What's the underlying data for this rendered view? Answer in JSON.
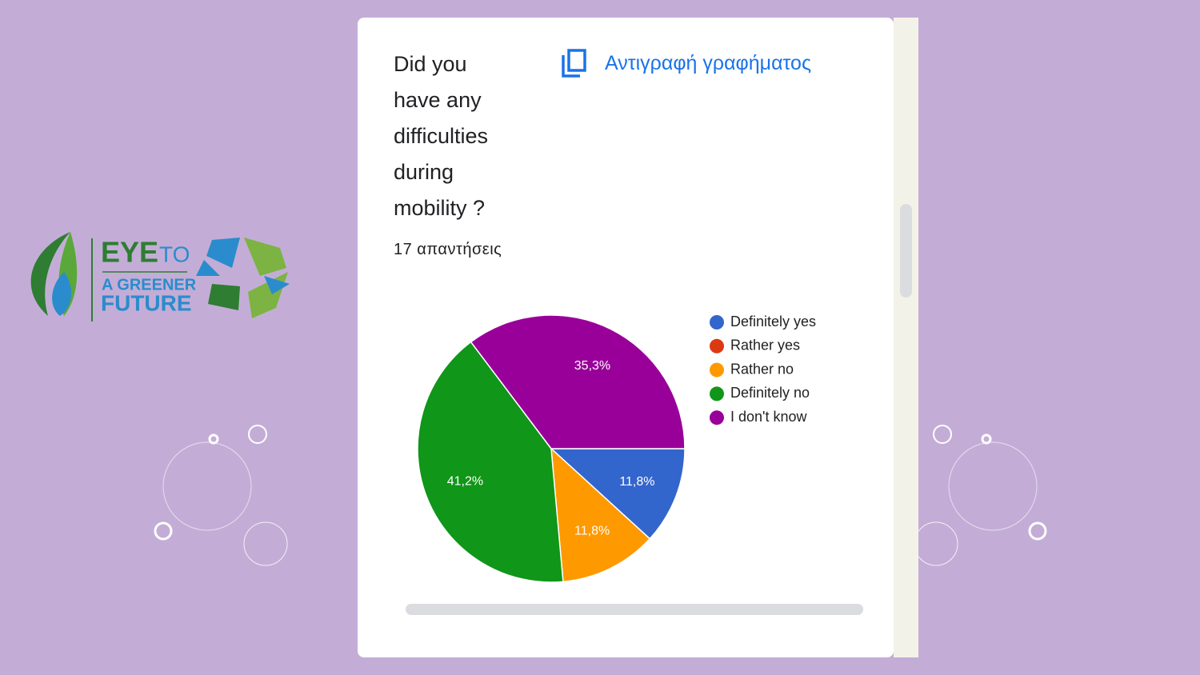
{
  "logo": {
    "word1": "EYE",
    "word2": "TO",
    "line2": "A GREENER",
    "line3": "FUTURE"
  },
  "copy_link": "Αντιγραφή γραφήματος",
  "responses": "17 απαντήσεις",
  "chart_data": {
    "type": "pie",
    "title": "Did you have any difficulties during mobility ?",
    "categories": [
      "Definitely yes",
      "Rather yes",
      "Rather no",
      "Definitely no",
      "I don't know"
    ],
    "values": [
      11.8,
      0,
      11.8,
      41.2,
      35.3
    ],
    "value_labels": [
      "11,8%",
      null,
      "11,8%",
      "41,2%",
      "35,3%"
    ],
    "colors": [
      "#3366cc",
      "#dc3912",
      "#ff9900",
      "#109618",
      "#990099"
    ],
    "legend": "right"
  }
}
